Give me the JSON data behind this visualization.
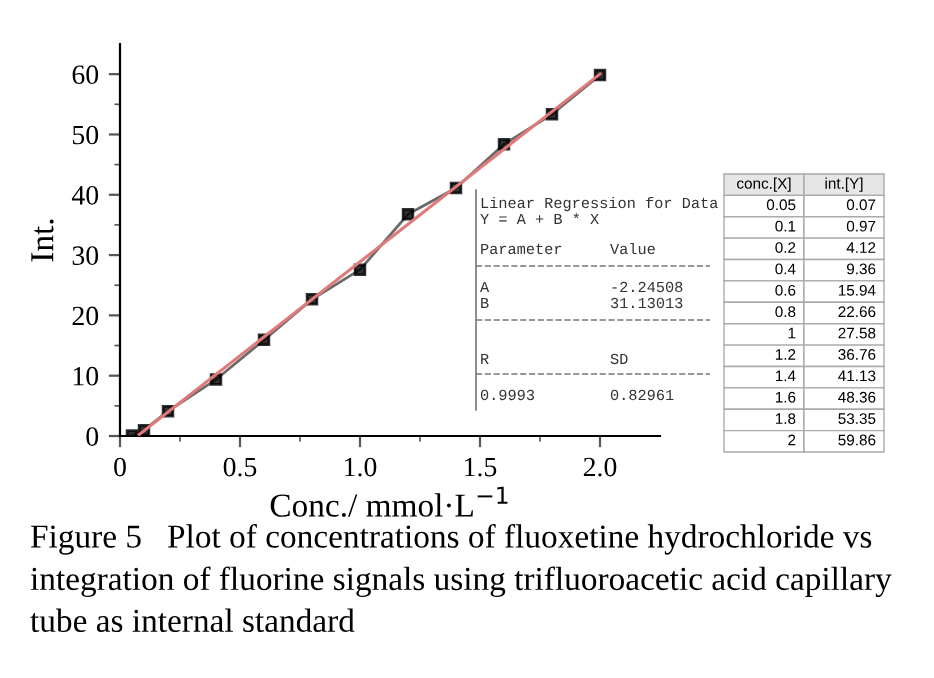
{
  "chart_data": {
    "type": "line",
    "xlabel": "Conc./ mmol·L$^{−1}$",
    "ylabel": "Int.",
    "xlim": [
      0,
      2.25
    ],
    "ylim": [
      0,
      65
    ],
    "xticks": [
      0,
      0.5,
      {
        "value": 1,
        "label": "1.0"
      },
      1.5,
      {
        "value": 2,
        "label": "2.0"
      }
    ],
    "yticks": [
      0,
      10,
      20,
      30,
      40,
      50,
      60
    ],
    "marker": "square",
    "grid": false,
    "legend": false,
    "series": [
      {
        "color": "#444444",
        "x": [
          0.05,
          0.1,
          0.2,
          0.4,
          0.6,
          0.8,
          1,
          1.2,
          1.4,
          1.6,
          1.8,
          2
        ],
        "values": [
          0.07,
          0.97,
          4.12,
          9.36,
          15.94,
          22.66,
          27.58,
          36.76,
          41.13,
          48.36,
          53.35,
          59.86
        ]
      },
      {
        "color": "#e07a7a",
        "marker": "none",
        "x": [
          0.08,
          2.0
        ],
        "values": [
          0.24,
          60.02
        ]
      }
    ],
    "annotations": [
      "Linear Regression for Data",
      "Y = A + B * X",
      "Parameter",
      "Value",
      "A",
      "-2.24508",
      "B",
      "31.13013",
      "R",
      "SD",
      "0.9993",
      "0.82961",
      "Figure 5   Plot of concentrations of fluoxetine hydrochloride vs integration of fluorine signals using trifluoroacetic acid capillary tube as internal standard",
      "conc.[X]",
      "int.[Y]",
      "0.05",
      "0.07",
      "0.1",
      "0.97",
      "0.2",
      "4.12",
      "0.4",
      "9.36",
      "0.6",
      "15.94",
      "0.8",
      "22.66",
      "1",
      "27.58",
      "1.2",
      "36.76",
      "1.4",
      "41.13",
      "1.6",
      "48.36",
      "1.8",
      "53.35",
      "2",
      "59.86"
    ]
  }
}
